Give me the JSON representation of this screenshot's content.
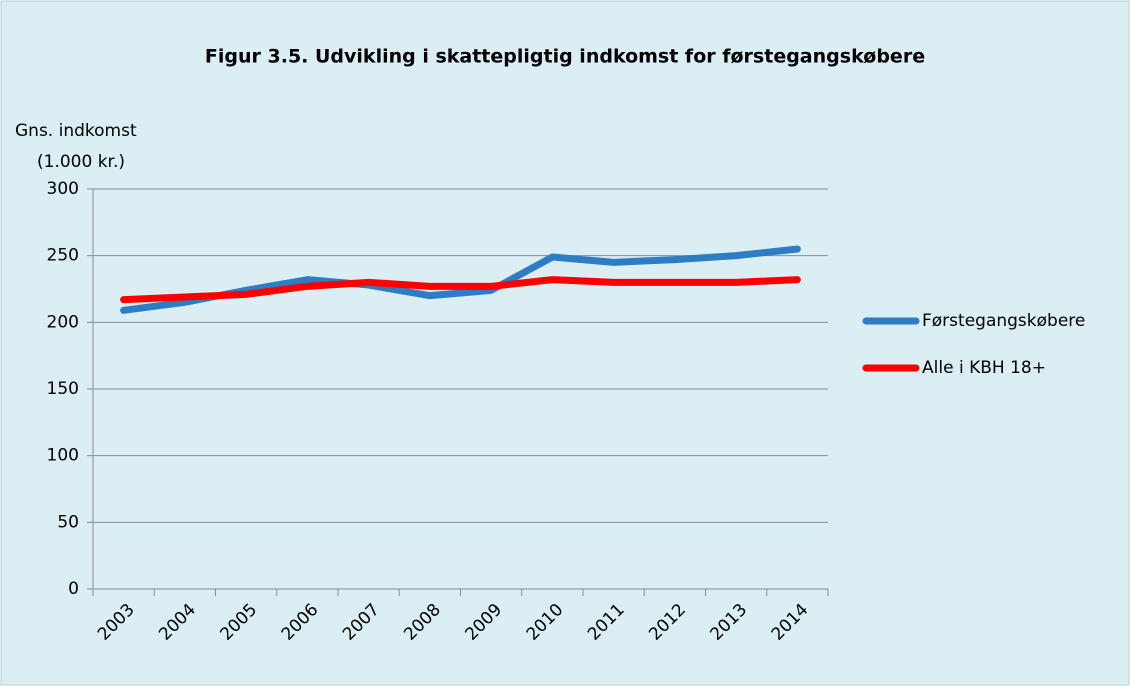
{
  "chart_data": {
    "type": "line",
    "title": "Figur 3.5. Udvikling i skattepligtig indkomst for førstegangskøbere",
    "ylabel": [
      "Gns. indkomst",
      "(1.000 kr.)"
    ],
    "categories": [
      "2003",
      "2004",
      "2005",
      "2006",
      "2007",
      "2008",
      "2009",
      "2010",
      "2011",
      "2012",
      "2013",
      "2014"
    ],
    "series": [
      {
        "name": "Førstegangskøbere",
        "color": "#2e7dc4",
        "values": [
          209,
          215,
          224,
          232,
          228,
          220,
          224,
          249,
          245,
          247,
          250,
          255
        ]
      },
      {
        "name": "Alle i KBH 18+",
        "color": "#ff0000",
        "values": [
          217,
          219,
          221,
          227,
          230,
          227,
          227,
          232,
          230,
          230,
          230,
          232
        ]
      }
    ],
    "ylim": [
      0,
      300
    ],
    "yticks": [
      0,
      50,
      100,
      150,
      200,
      250,
      300
    ],
    "grid": true,
    "legend": "right"
  }
}
